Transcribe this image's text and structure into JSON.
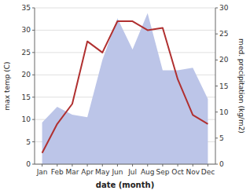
{
  "chart_data": {
    "type": "line",
    "categories": [
      "Jan",
      "Feb",
      "Mar",
      "Apr",
      "May",
      "Jun",
      "Jul",
      "Aug",
      "Sep",
      "Oct",
      "Nov",
      "Dec"
    ],
    "xlabel": "date (month)",
    "ylabel": "max temp (C)",
    "y2label": "med. precipitation (kg/m2)",
    "series": [
      {
        "type": "area",
        "axis": "y2",
        "color": "#bcc5e8",
        "values": [
          8.0,
          11.0,
          9.5,
          9.0,
          20.0,
          28.0,
          22.0,
          29.0,
          18.0,
          18.0,
          18.5,
          12.5
        ]
      },
      {
        "type": "line",
        "color": "#b03030",
        "values": [
          2.5,
          9.0,
          13.5,
          27.5,
          25.0,
          32.0,
          32.0,
          30.0,
          30.5,
          19.0,
          11.0,
          9.0
        ]
      }
    ],
    "ylim": [
      0,
      35
    ],
    "yticks": [
      0,
      5,
      10,
      15,
      20,
      25,
      30,
      35
    ],
    "y2lim": [
      0,
      30
    ],
    "y2ticks": [
      0,
      5,
      10,
      15,
      20,
      25,
      30
    ],
    "grid": true
  }
}
